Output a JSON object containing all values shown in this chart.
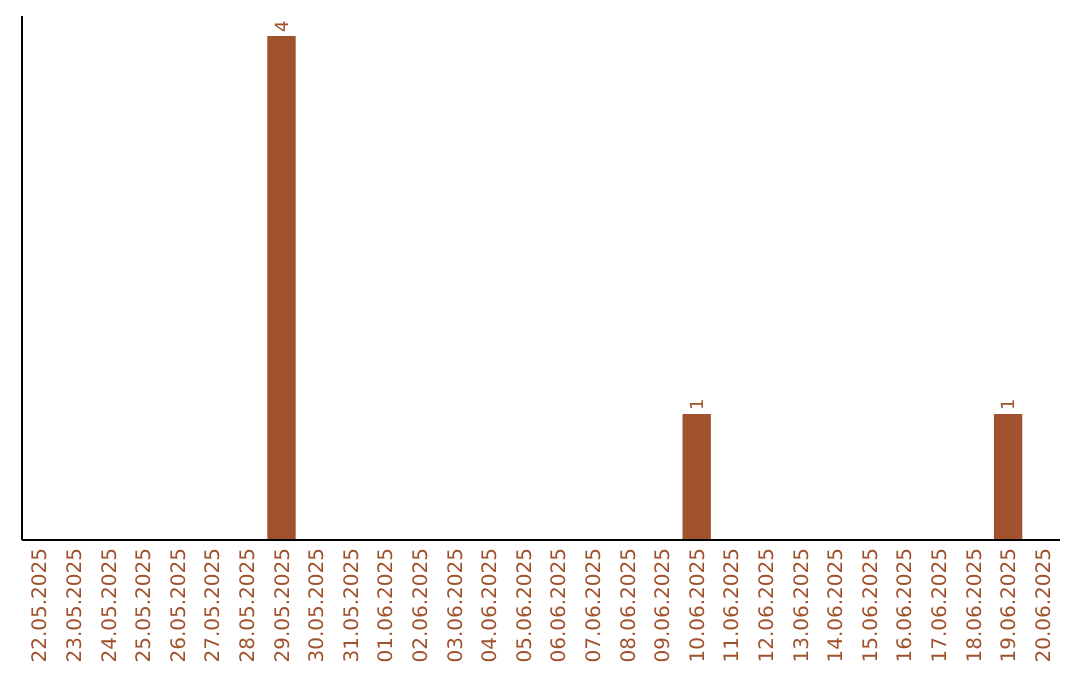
{
  "chart_data": {
    "type": "bar",
    "categories": [
      "22.05.2025",
      "23.05.2025",
      "24.05.2025",
      "25.05.2025",
      "26.05.2025",
      "27.05.2025",
      "28.05.2025",
      "29.05.2025",
      "30.05.2025",
      "31.05.2025",
      "01.06.2025",
      "02.06.2025",
      "03.06.2025",
      "04.06.2025",
      "05.06.2025",
      "06.06.2025",
      "07.06.2025",
      "08.06.2025",
      "09.06.2025",
      "10.06.2025",
      "11.06.2025",
      "12.06.2025",
      "13.06.2025",
      "14.06.2025",
      "15.06.2025",
      "16.06.2025",
      "17.06.2025",
      "18.06.2025",
      "19.06.2025",
      "20.06.2025"
    ],
    "values": [
      0,
      0,
      0,
      0,
      0,
      0,
      0,
      4,
      0,
      0,
      0,
      0,
      0,
      0,
      0,
      0,
      0,
      0,
      0,
      1,
      0,
      0,
      0,
      0,
      0,
      0,
      0,
      0,
      1,
      0
    ],
    "value_labels": [
      null,
      null,
      null,
      null,
      null,
      null,
      null,
      "4",
      null,
      null,
      null,
      null,
      null,
      null,
      null,
      null,
      null,
      null,
      null,
      "1",
      null,
      null,
      null,
      null,
      null,
      null,
      null,
      null,
      "1",
      null
    ],
    "color": "#a0522d"
  }
}
